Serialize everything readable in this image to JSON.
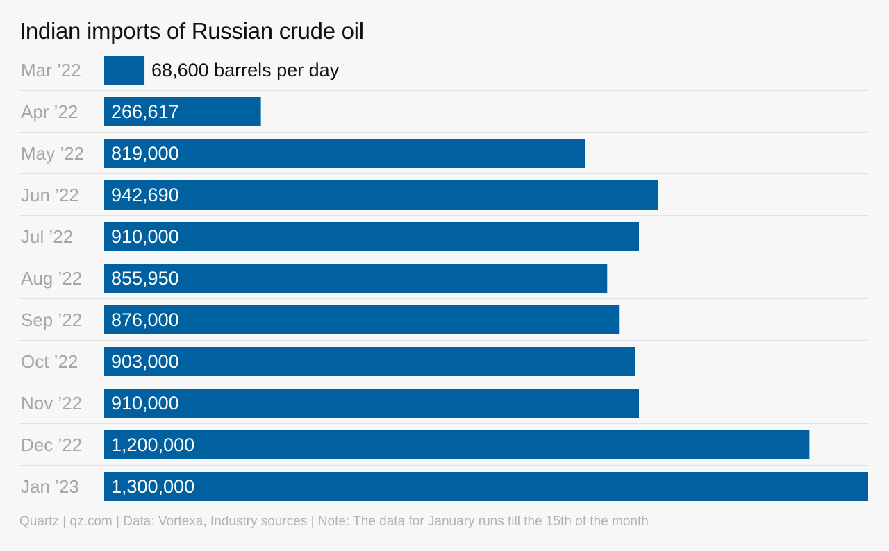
{
  "colors": {
    "bar": "#0160a0",
    "background": "#f7f7f7",
    "gridline": "#e2e2e2",
    "label_inside": "#ffffff",
    "label_outside": "#111111",
    "category_label": "#a6a6a6"
  },
  "footer": "Quartz | qz.com | Data: Vortexa, Industry sources | Note: The data for January runs till the 15th of the month",
  "chart_data": {
    "type": "bar",
    "orientation": "horizontal",
    "title": "Indian imports of Russian crude oil",
    "xlabel": "",
    "ylabel": "",
    "grid": "horizontal separators between rows",
    "legend": "none",
    "xlim": [
      0,
      1300000
    ],
    "categories": [
      "Mar ’22",
      "Apr ’22",
      "May ’22",
      "Jun ’22",
      "Jul ’22",
      "Aug ’22",
      "Sep ’22",
      "Oct ’22",
      "Nov ’22",
      "Dec ’22",
      "Jan ’23"
    ],
    "values": [
      68600,
      266617,
      819000,
      942690,
      910000,
      855950,
      876000,
      903000,
      910000,
      1200000,
      1300000
    ],
    "value_labels": [
      "68,600 barrels per day",
      "266,617",
      "819,000",
      "942,690",
      "910,000",
      "855,950",
      "876,000",
      "903,000",
      "910,000",
      "1,200,000",
      "1,300,000"
    ]
  }
}
